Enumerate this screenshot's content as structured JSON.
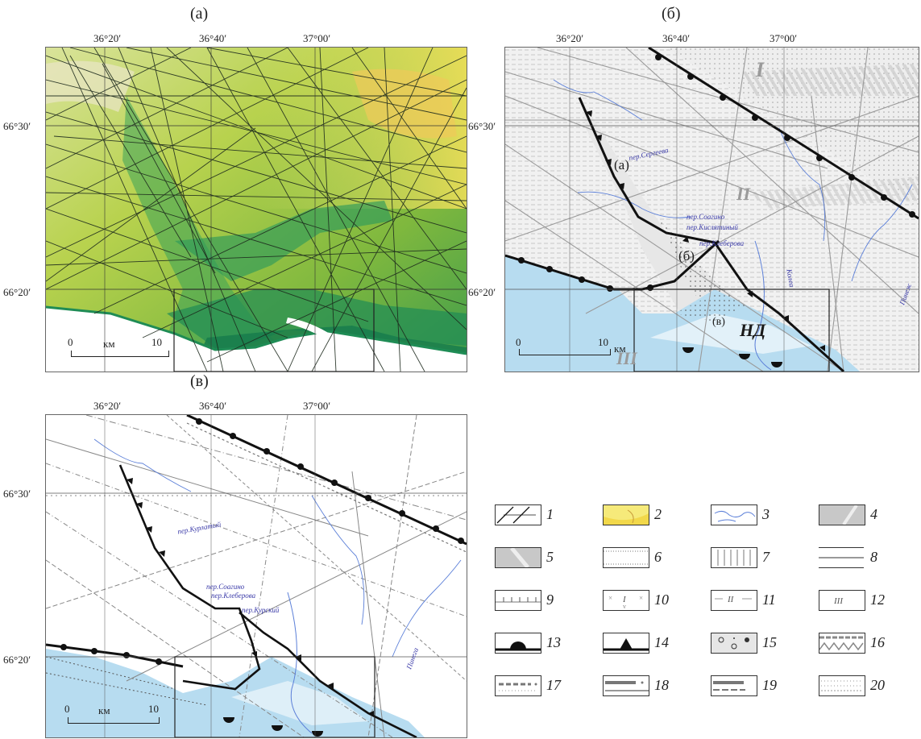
{
  "panels": [
    {
      "label": "(а)",
      "scale_left": "0",
      "scale_unit": "км",
      "scale_right": "10"
    },
    {
      "label": "(б)",
      "scale_left": "0",
      "scale_unit": "км",
      "scale_right": "10"
    },
    {
      "label": "(в)",
      "scale_left": "0",
      "scale_unit": "км",
      "scale_right": "10"
    }
  ],
  "coords": {
    "lon": [
      "36°20′",
      "36°40′",
      "37°00′"
    ],
    "lat": [
      "66°30′",
      "66°20′"
    ]
  },
  "map_b": {
    "zones": [
      "I",
      "II",
      "III",
      "НД"
    ],
    "sites": [
      "(а)",
      "(б)",
      "(в)"
    ],
    "blue_labels": [
      "пер.Сергеева",
      "пер.Соагино",
      "пер.Кислятиный",
      "пер.Клеберова",
      "Колеа",
      "Пинеж"
    ]
  },
  "map_c": {
    "blue_labels": [
      "пер.Курлатый",
      "пер.Соагино",
      "пер.Клеберова",
      "пер.Курский",
      "Пинега"
    ]
  },
  "legend": [
    "1",
    "2",
    "3",
    "4",
    "5",
    "6",
    "7",
    "8",
    "9",
    "10",
    "11",
    "12",
    "13",
    "14",
    "15",
    "16",
    "17",
    "18",
    "19",
    "20"
  ],
  "colors": {
    "sea": "#b7dcf0",
    "lowland_green": "#3aa35a",
    "upland_yellow": "#f2e25a",
    "mid_green": "#a9cc4a"
  }
}
